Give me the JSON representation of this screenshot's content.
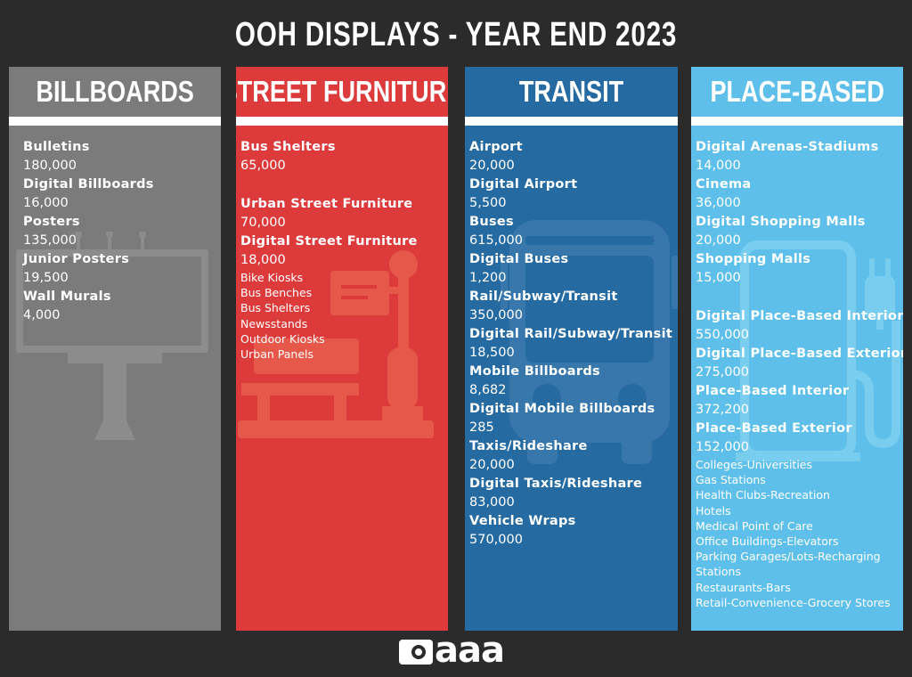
{
  "title": "OOH DISPLAYS - YEAR END 2023",
  "colors": {
    "background": "#2b2b2b",
    "billboards": "#7b7b7b",
    "street_furniture": "#dc3a3b",
    "transit": "#256aa0",
    "place_based": "#5ec0ea"
  },
  "columns": {
    "billboards": {
      "header": "BILLBOARDS",
      "icon": "billboard-icon",
      "entries": [
        {
          "name": "Bulletins",
          "value": "180,000"
        },
        {
          "name": "Digital Billboards",
          "value": "16,000"
        },
        {
          "name": "Posters",
          "value": "135,000"
        },
        {
          "name": "Junior Posters",
          "value": "19,500"
        },
        {
          "name": "Wall Murals",
          "value": "4,000"
        }
      ]
    },
    "street_furniture": {
      "header": "STREET FURNITURE",
      "icon": "bench-and-sign-icon",
      "entries": [
        {
          "name": "Bus Shelters",
          "value": "65,000"
        },
        {
          "name": "Urban Street Furniture",
          "value": "70,000"
        },
        {
          "name": "Digital Street Furniture",
          "value": "18,000"
        }
      ],
      "sub_items": [
        "Bike Kiosks",
        "Bus Benches",
        "Bus Shelters",
        "Newsstands",
        "Outdoor Kiosks",
        "Urban Panels"
      ]
    },
    "transit": {
      "header": "TRANSIT",
      "icon": "bus-icon",
      "entries": [
        {
          "name": "Airport",
          "value": "20,000"
        },
        {
          "name": "Digital Airport",
          "value": "5,500"
        },
        {
          "name": "Buses",
          "value": "615,000"
        },
        {
          "name": "Digital Buses",
          "value": "1,200"
        },
        {
          "name": "Rail/Subway/Transit",
          "value": "350,000"
        },
        {
          "name": "Digital Rail/Subway/Transit",
          "value": "18,500"
        },
        {
          "name": "Mobile Billboards",
          "value": "8,682"
        },
        {
          "name": "Digital Mobile Billboards",
          "value": "285"
        },
        {
          "name": "Taxis/Rideshare",
          "value": "20,000"
        },
        {
          "name": "Digital Taxis/Rideshare",
          "value": "83,000"
        },
        {
          "name": "Vehicle Wraps",
          "value": "570,000"
        }
      ]
    },
    "place_based": {
      "header": "PLACE-BASED",
      "icon": "charging-station-icon",
      "entries": [
        {
          "name": "Digital Arenas-Stadiums",
          "value": "14,000"
        },
        {
          "name": "Cinema",
          "value": "36,000"
        },
        {
          "name": "Digital Shopping Malls",
          "value": "20,000"
        },
        {
          "name": "Shopping Malls",
          "value": "15,000"
        },
        {
          "name": "Digital Place-Based Interior",
          "value": "550,000"
        },
        {
          "name": "Digital Place-Based Exterior",
          "value": "275,000"
        },
        {
          "name": "Place-Based Interior",
          "value": "372,200"
        },
        {
          "name": "Place-Based Exterior",
          "value": "152,000"
        }
      ],
      "sub_items": [
        "Colleges-Universities",
        "Gas Stations",
        "Health Clubs-Recreation",
        "Hotels",
        "Medical Point of Care",
        "Office Buildings-Elevators",
        "Parking Garages/Lots-Recharging Stations",
        "Restaurants-Bars",
        "Retail-Convenience-Grocery Stores"
      ]
    }
  },
  "logo": {
    "text": "aaa",
    "icon": "oaaa-logo-icon"
  }
}
